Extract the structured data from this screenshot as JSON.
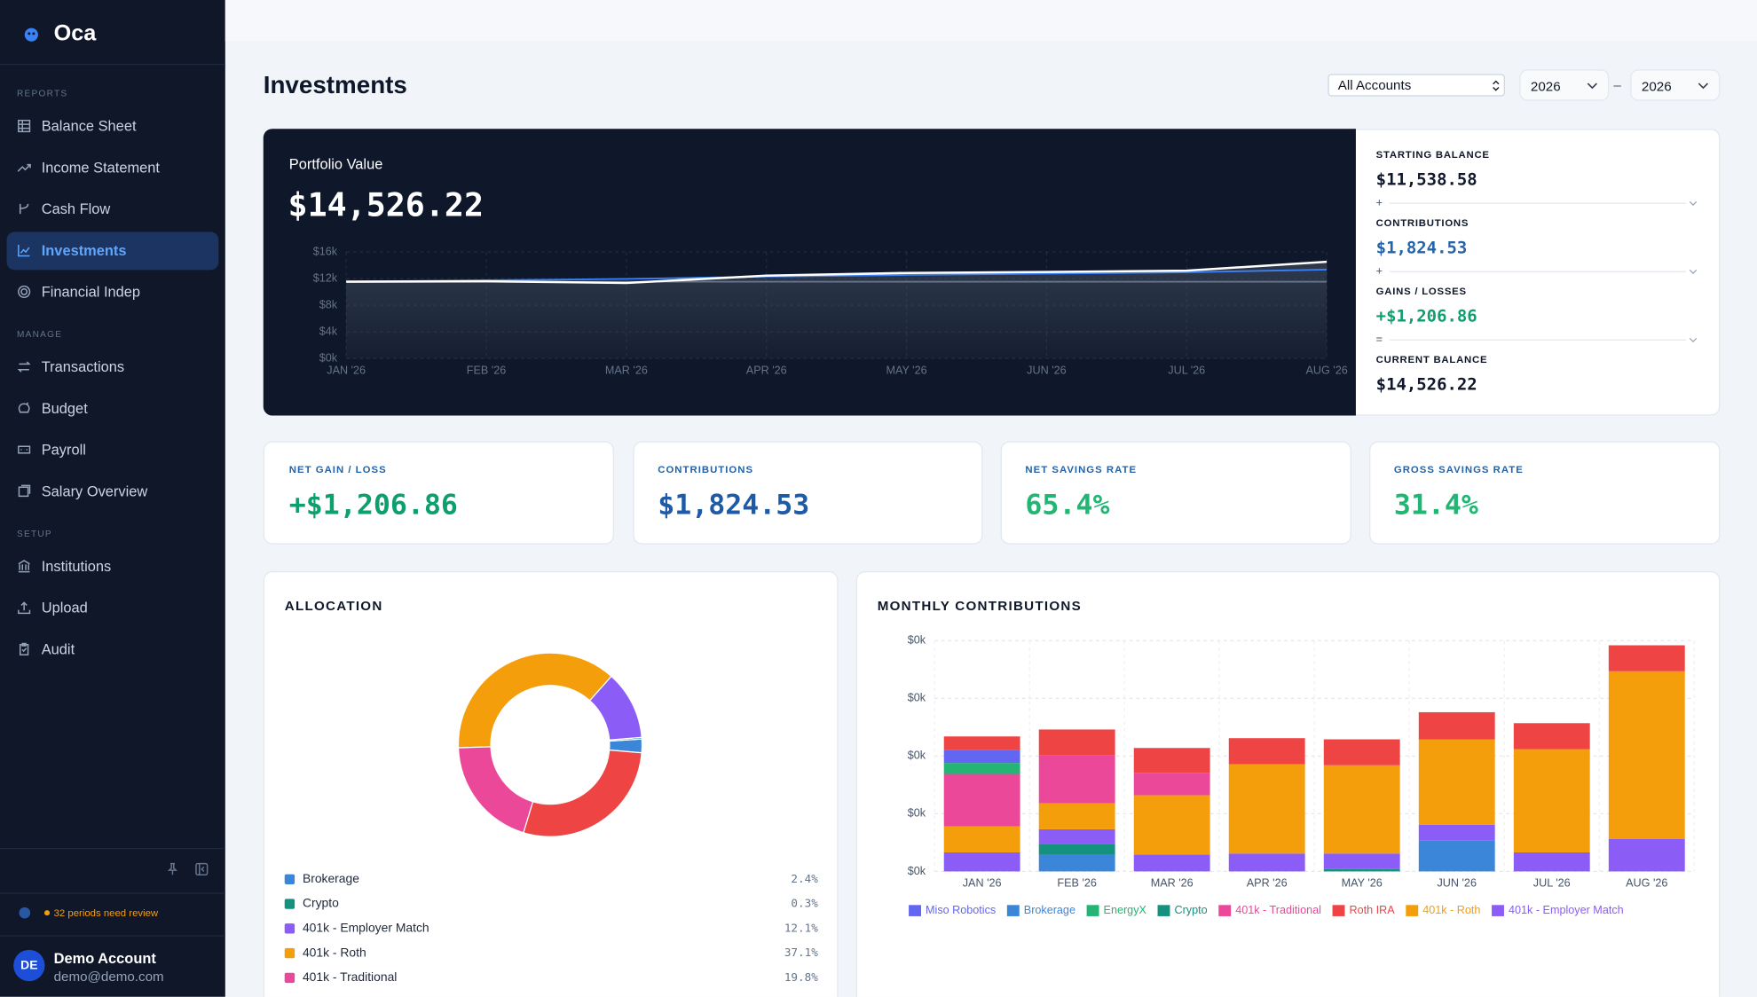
{
  "sidebar": {
    "brand": "Oca",
    "sections": [
      {
        "title": "REPORTS",
        "items": [
          "Balance Sheet",
          "Income Statement",
          "Cash Flow",
          "Investments",
          "Financial Indep"
        ]
      },
      {
        "title": "MANAGE",
        "items": [
          "Transactions",
          "Budget",
          "Payroll",
          "Salary Overview"
        ]
      },
      {
        "title": "SETUP",
        "items": [
          "Institutions",
          "Upload",
          "Audit"
        ]
      }
    ],
    "notice": "32 periods need review",
    "user": {
      "initials": "DE",
      "name": "Demo Account",
      "email": "demo@demo.com"
    }
  },
  "header": {
    "title": "Investments",
    "account_filter": "All Accounts",
    "year_from": "2026",
    "range_separator": "–",
    "year_to": "2026"
  },
  "summary": {
    "items": [
      {
        "label": "STARTING BALANCE",
        "value": "$11,538.58"
      },
      {
        "label": "CONTRIBUTIONS",
        "value": "$1,824.53"
      },
      {
        "label": "GAINS / LOSSES",
        "value": "+$1,206.86"
      },
      {
        "label": "CURRENT BALANCE",
        "value": "$14,526.22"
      }
    ],
    "operators": [
      "+",
      "+",
      "="
    ]
  },
  "kpis": [
    {
      "label": "NET GAIN / LOSS",
      "value": "+$1,206.86"
    },
    {
      "label": "CONTRIBUTIONS",
      "value": "$1,824.53"
    },
    {
      "label": "NET SAVINGS RATE",
      "value": "65.4%"
    },
    {
      "label": "GROSS SAVINGS RATE",
      "value": "31.4%"
    }
  ],
  "chart_data": [
    {
      "type": "line",
      "title": "Portfolio Value",
      "subtitle": "$14,526.22",
      "categories": [
        "JAN '26",
        "FEB '26",
        "MAR '26",
        "APR '26",
        "MAY '26",
        "JUN '26",
        "JUL '26",
        "AUG '26"
      ],
      "series": [
        {
          "color": "#94a3b8",
          "values": [
            11.54,
            11.54,
            11.54,
            11.54,
            11.54,
            11.54,
            11.54,
            11.54
          ]
        },
        {
          "color": "#3b82f6",
          "values": [
            11.54,
            11.75,
            11.95,
            12.3,
            12.55,
            12.75,
            12.95,
            13.36
          ]
        },
        {
          "color": "#ffffff",
          "values": [
            11.54,
            11.6,
            11.35,
            12.45,
            12.85,
            13.0,
            13.2,
            14.53
          ]
        }
      ],
      "ylim": [
        0,
        16
      ],
      "yticks": [
        {
          "value": 0,
          "label": "$0k"
        },
        {
          "value": 4,
          "label": "$4k"
        },
        {
          "value": 8,
          "label": "$8k"
        },
        {
          "value": 12,
          "label": "$12k"
        },
        {
          "value": 16,
          "label": "$16k"
        }
      ],
      "grid": true
    },
    {
      "type": "pie",
      "title": "ALLOCATION",
      "donut": true,
      "categories": [
        "Brokerage",
        "Crypto",
        "401k - Employer Match",
        "401k - Roth",
        "401k - Traditional",
        null
      ],
      "values": [
        2.4,
        0.3,
        12.1,
        37.1,
        19.8,
        28.3
      ],
      "value_labels": [
        "2.4%",
        "0.3%",
        "12.1%",
        "37.1%",
        "19.8%",
        null
      ],
      "colors": [
        "#3b86d9",
        "#14917f",
        "#8b5cf6",
        "#f59e0b",
        "#ec4899",
        "#ef4444"
      ]
    },
    {
      "type": "bar",
      "stacked": true,
      "title": "MONTHLY CONTRIBUTIONS",
      "categories": [
        "JAN '26",
        "FEB '26",
        "MAR '26",
        "APR '26",
        "MAY '26",
        "JUN '26",
        "JUL '26",
        "AUG '26"
      ],
      "series": [
        {
          "name": "Miso Robotics",
          "color": "#6366f1",
          "values": [
            23,
            0,
            0,
            0,
            0,
            0,
            0,
            0
          ]
        },
        {
          "name": "Brokerage",
          "color": "#3b86d9",
          "values": [
            0,
            29,
            0,
            0,
            0,
            54,
            0,
            0
          ]
        },
        {
          "name": "EnergyX",
          "color": "#22b573",
          "values": [
            19,
            0,
            0,
            0,
            0,
            0,
            0,
            0
          ]
        },
        {
          "name": "Crypto",
          "color": "#14917f",
          "values": [
            0,
            19,
            0,
            0,
            4,
            0,
            0,
            0
          ]
        },
        {
          "name": "401k - Traditional",
          "color": "#ec4899",
          "values": [
            91,
            83,
            39,
            0,
            0,
            0,
            0,
            0
          ]
        },
        {
          "name": "Roth IRA",
          "color": "#ef4444",
          "values": [
            23,
            45,
            43,
            45,
            45,
            47,
            45,
            45
          ]
        },
        {
          "name": "401k - Roth",
          "color": "#f59e0b",
          "values": [
            45,
            45,
            103,
            155,
            153,
            148,
            179,
            291
          ]
        },
        {
          "name": "401k - Employer Match",
          "color": "#8b5cf6",
          "values": [
            33,
            25,
            29,
            31,
            27,
            27,
            33,
            56
          ]
        }
      ],
      "ylim": [
        0,
        400
      ],
      "yticks": [
        {
          "value": 0,
          "label": "$0k"
        },
        {
          "value": 100,
          "label": "$0k"
        },
        {
          "value": 200,
          "label": "$0k"
        },
        {
          "value": 300,
          "label": "$0k"
        },
        {
          "value": 400,
          "label": "$0k"
        }
      ],
      "grid": true,
      "legend": "bottom"
    }
  ]
}
